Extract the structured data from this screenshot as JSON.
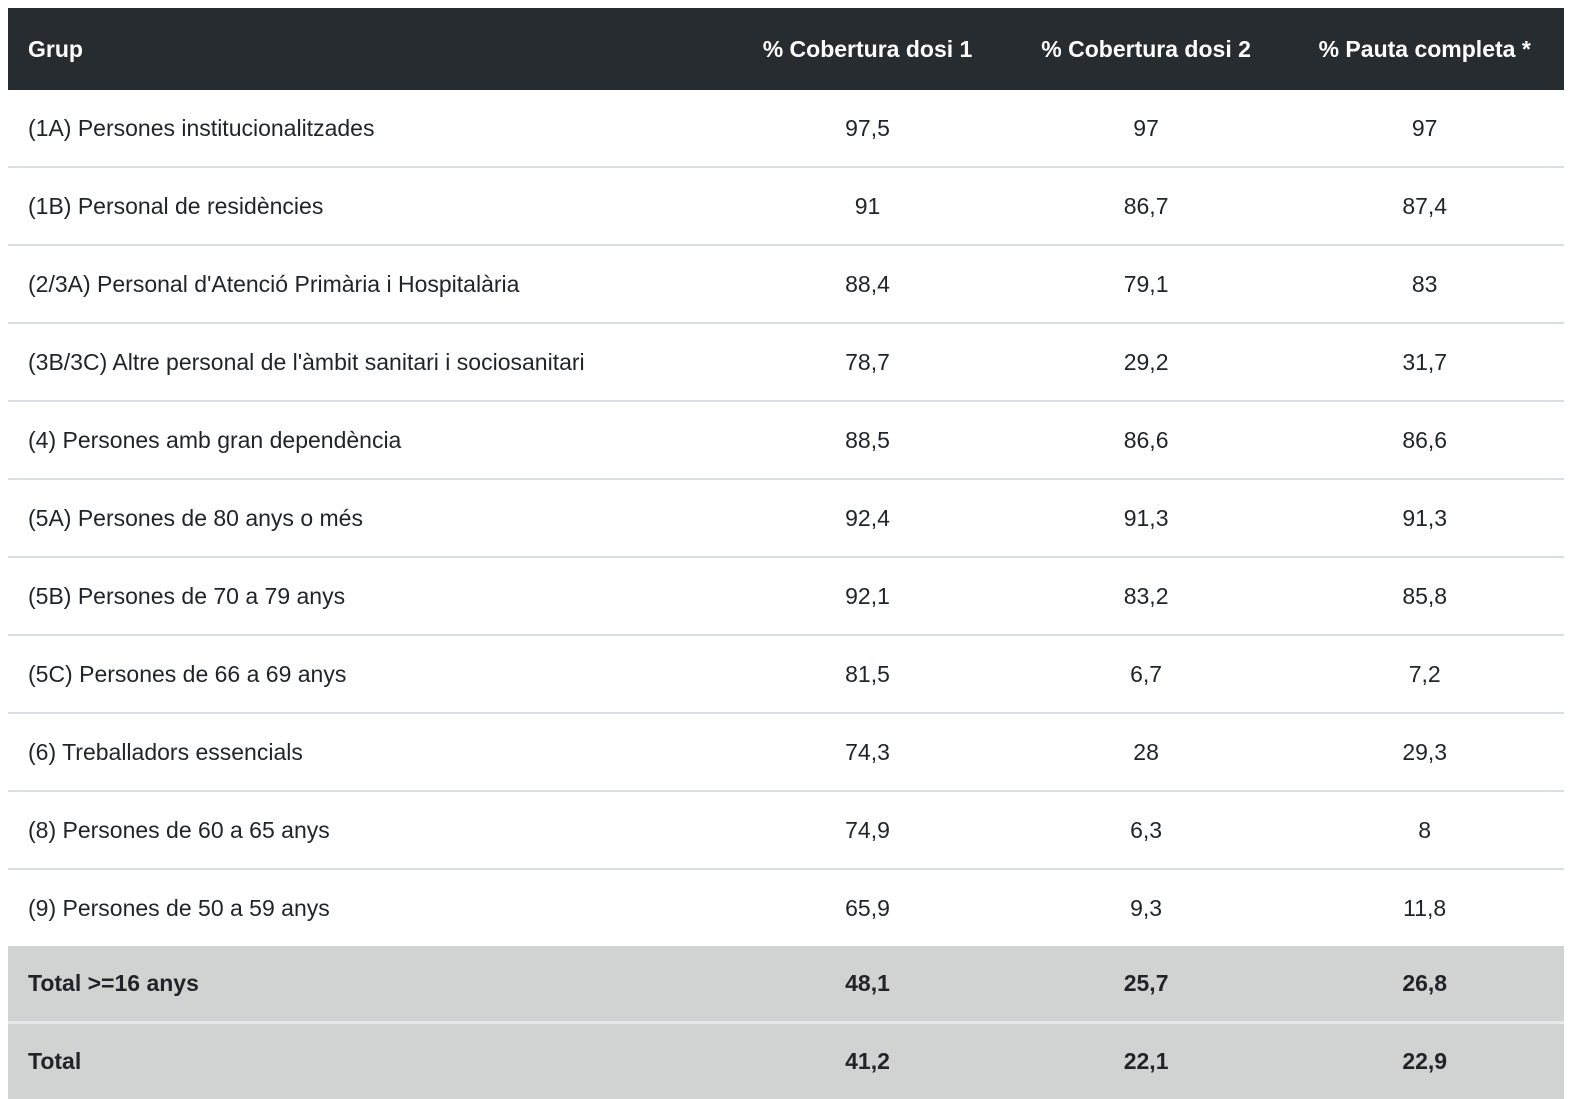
{
  "chart_data": {
    "type": "table",
    "columns": [
      "Grup",
      "% Cobertura dosi 1",
      "% Cobertura dosi 2",
      "% Pauta completa *"
    ],
    "rows": [
      [
        "(1A) Persones institucionalitzades",
        "97,5",
        "97",
        "97"
      ],
      [
        "(1B) Personal de residències",
        "91",
        "86,7",
        "87,4"
      ],
      [
        "(2/3A) Personal d'Atenció Primària i Hospitalària",
        "88,4",
        "79,1",
        "83"
      ],
      [
        "(3B/3C) Altre personal de l'àmbit sanitari i sociosanitari",
        "78,7",
        "29,2",
        "31,7"
      ],
      [
        "(4) Persones amb gran dependència",
        "88,5",
        "86,6",
        "86,6"
      ],
      [
        "(5A) Persones de 80 anys o més",
        "92,4",
        "91,3",
        "91,3"
      ],
      [
        "(5B) Persones de 70 a 79 anys",
        "92,1",
        "83,2",
        "85,8"
      ],
      [
        "(5C) Persones de 66 a 69 anys",
        "81,5",
        "6,7",
        "7,2"
      ],
      [
        "(6) Treballadors essencials",
        "74,3",
        "28",
        "29,3"
      ],
      [
        "(8) Persones de 60 a 65 anys",
        "74,9",
        "6,3",
        "8"
      ],
      [
        "(9) Persones de 50 a 59 anys",
        "65,9",
        "9,3",
        "11,8"
      ]
    ],
    "total_rows": [
      [
        "Total >=16 anys",
        "48,1",
        "25,7",
        "26,8"
      ],
      [
        "Total",
        "41,2",
        "22,1",
        "22,9"
      ]
    ],
    "layout": {
      "header_align": "center",
      "first_column_align": "left",
      "value_align": "center",
      "grid": "horizontal-dividers-only"
    }
  },
  "colors": {
    "header_bg": "#272c31",
    "header_text": "#ffffff",
    "body_text": "#1f2428",
    "row_divider": "#d9dce0",
    "total_row_bg": "#d1d2d2",
    "total_divider": "#e6e8ea",
    "page_bg": "#ffffff"
  }
}
